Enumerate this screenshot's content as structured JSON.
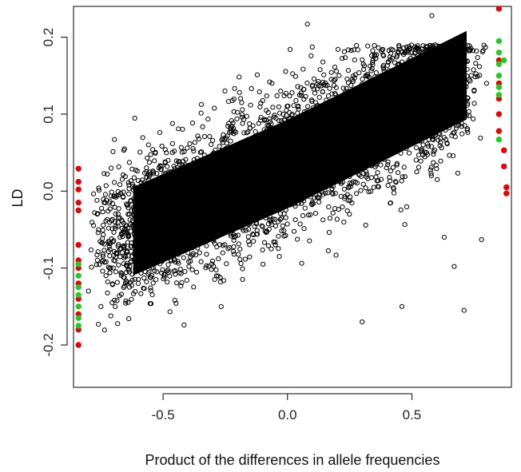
{
  "chart_data": {
    "type": "scatter",
    "title": "",
    "xlabel": "Product of the differences in allele frequencies",
    "ylabel": "LD",
    "xlim": [
      -0.86,
      0.9
    ],
    "ylim": [
      -0.255,
      0.24
    ],
    "x_ticks": [
      -0.5,
      0.0,
      0.5
    ],
    "x_tick_labels": [
      "-0.5",
      "0.0",
      "0.5"
    ],
    "y_ticks": [
      -0.2,
      -0.1,
      0.0,
      0.1,
      0.2
    ],
    "y_tick_labels": [
      "-0.2",
      "-0.1",
      "0.0",
      "0.1",
      "0.2"
    ],
    "grid": false,
    "legend": "none",
    "series": [
      {
        "marker": "open-circle",
        "color": "#000000",
        "description_of_distribution": "dense cloud of ~tens of thousands of points following positive trend; LD roughly 0.14*x - 0.08 on the left to 0.13 on the right",
        "values": [
          [
            -0.8,
            -0.13
          ],
          [
            -0.75,
            -0.15
          ],
          [
            -0.7,
            -0.1
          ],
          [
            -0.6,
            -0.12
          ],
          [
            -0.55,
            -0.06
          ],
          [
            -0.5,
            -0.05
          ],
          [
            -0.45,
            -0.02
          ],
          [
            -0.4,
            -0.08
          ],
          [
            -0.35,
            0.0
          ],
          [
            -0.3,
            0.03
          ],
          [
            -0.25,
            -0.01
          ],
          [
            -0.2,
            0.05
          ],
          [
            -0.15,
            0.02
          ],
          [
            -0.1,
            0.07
          ],
          [
            -0.05,
            0.04
          ],
          [
            0.0,
            0.06
          ],
          [
            0.05,
            0.09
          ],
          [
            0.1,
            0.05
          ],
          [
            0.15,
            0.1
          ],
          [
            0.2,
            0.08
          ],
          [
            0.25,
            0.11
          ],
          [
            0.3,
            0.07
          ],
          [
            0.35,
            0.12
          ],
          [
            0.4,
            0.1
          ],
          [
            0.45,
            0.13
          ],
          [
            0.5,
            0.09
          ],
          [
            0.55,
            0.14
          ],
          [
            0.6,
            0.12
          ],
          [
            0.65,
            0.15
          ],
          [
            0.7,
            0.11
          ],
          [
            0.75,
            0.13
          ],
          [
            0.8,
            0.14
          ],
          [
            0.08,
            0.217
          ],
          [
            0.58,
            0.228
          ],
          [
            0.46,
            -0.15
          ],
          [
            0.71,
            -0.155
          ],
          [
            0.67,
            -0.098
          ],
          [
            0.63,
            -0.06
          ],
          [
            0.78,
            -0.063
          ],
          [
            0.3,
            -0.17
          ]
        ]
      },
      {
        "marker": "filled-circle",
        "color": "#ee0000",
        "values": [
          [
            -0.84,
            0.029
          ],
          [
            -0.84,
            0.012
          ],
          [
            -0.84,
            0.002
          ],
          [
            -0.84,
            -0.015
          ],
          [
            -0.84,
            -0.025
          ],
          [
            -0.84,
            -0.07
          ],
          [
            -0.84,
            -0.09
          ],
          [
            -0.84,
            -0.1
          ],
          [
            -0.84,
            -0.12
          ],
          [
            -0.84,
            -0.14
          ],
          [
            -0.84,
            -0.16
          ],
          [
            -0.84,
            -0.18
          ],
          [
            -0.84,
            -0.2
          ],
          [
            0.85,
            0.237
          ],
          [
            0.85,
            0.17
          ],
          [
            0.85,
            0.14
          ],
          [
            0.85,
            0.12
          ],
          [
            0.85,
            0.1
          ],
          [
            0.85,
            0.078
          ],
          [
            0.87,
            0.053
          ],
          [
            0.87,
            0.032
          ],
          [
            0.88,
            0.005
          ],
          [
            0.88,
            -0.003
          ]
        ]
      },
      {
        "marker": "filled-circle",
        "color": "#22cc22",
        "values": [
          [
            -0.84,
            -0.095
          ],
          [
            -0.84,
            -0.11
          ],
          [
            -0.84,
            -0.125
          ],
          [
            -0.84,
            -0.135
          ],
          [
            -0.84,
            -0.15
          ],
          [
            -0.84,
            -0.165
          ],
          [
            -0.84,
            -0.175
          ],
          [
            0.85,
            0.195
          ],
          [
            0.85,
            0.18
          ],
          [
            0.85,
            0.165
          ],
          [
            0.85,
            0.15
          ],
          [
            0.85,
            0.135
          ],
          [
            0.85,
            0.125
          ],
          [
            0.85,
            0.067
          ],
          [
            0.87,
            0.17
          ]
        ]
      }
    ]
  }
}
